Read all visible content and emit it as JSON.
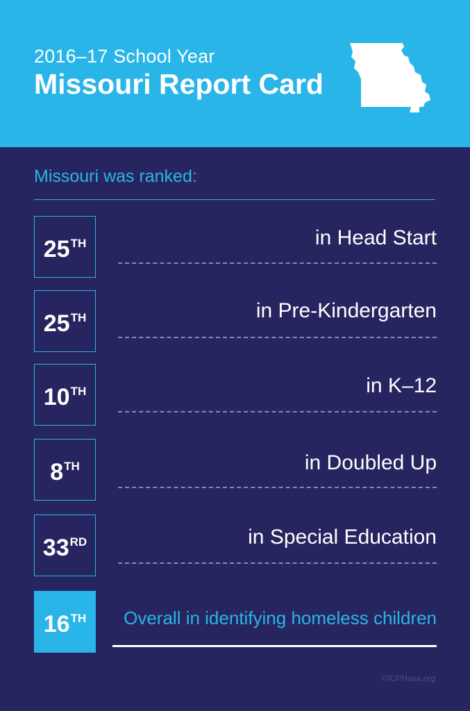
{
  "header": {
    "subtitle": "2016–17 School Year",
    "title": "Missouri Report Card",
    "state_icon": "missouri-state-silhouette"
  },
  "intro": "Missouri was ranked:",
  "rankings": [
    {
      "rank": "25",
      "suffix": "TH",
      "label": "in Head Start"
    },
    {
      "rank": "25",
      "suffix": "TH",
      "label": "in Pre-Kindergarten"
    },
    {
      "rank": "10",
      "suffix": "TH",
      "label": "in K–12"
    },
    {
      "rank": "8",
      "suffix": "TH",
      "label": "in Doubled Up"
    },
    {
      "rank": "33",
      "suffix": "RD",
      "label": "in Special Education"
    },
    {
      "rank": "16",
      "suffix": "TH",
      "label": "Overall in identifying homeless children"
    }
  ],
  "copyright": "©ICPHusa.org",
  "colors": {
    "header_bg": "#29b5e8",
    "body_bg": "#27255f",
    "accent": "#29b5e8",
    "text": "#ffffff"
  }
}
